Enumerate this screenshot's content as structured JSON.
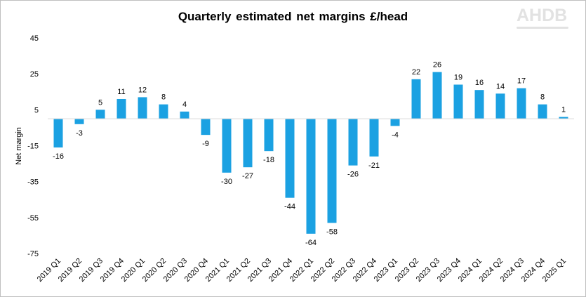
{
  "chart_data": {
    "type": "bar",
    "title": "Quarterly estimated net margins £/head",
    "ylabel": "Net margin",
    "xlabel": "",
    "ylim": [
      -75,
      45
    ],
    "yticks": [
      45,
      25,
      5,
      -15,
      -35,
      -55,
      -75
    ],
    "grid": false,
    "color": "#1BA1E2",
    "categories": [
      "2019 Q1",
      "2019 Q2",
      "2019 Q3",
      "2019 Q4",
      "2020 Q1",
      "2020 Q2",
      "2020 Q3",
      "2020 Q4",
      "2021 Q1",
      "2021 Q2",
      "2021 Q3",
      "2021 Q4",
      "2022 Q1",
      "2022 Q2",
      "2022 Q3",
      "2022 Q4",
      "2023 Q1",
      "2023 Q2",
      "2023 Q3",
      "2023 Q4",
      "2024 Q1",
      "2024 Q2",
      "2024 Q3",
      "2024 Q4",
      "2025 Q1"
    ],
    "values": [
      -16,
      -3,
      5,
      11,
      12,
      8,
      4,
      -9,
      -30,
      -27,
      -18,
      -44,
      -64,
      -58,
      -26,
      -21,
      -4,
      22,
      26,
      19,
      16,
      14,
      17,
      8,
      1
    ]
  },
  "logo": {
    "text": "AHDB"
  }
}
